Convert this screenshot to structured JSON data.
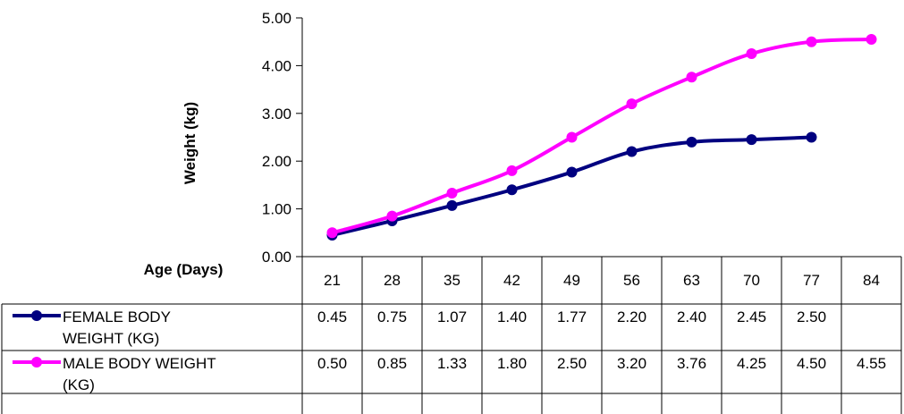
{
  "chart_data": {
    "type": "line",
    "title": "",
    "xlabel": "Age (Days)",
    "ylabel": "Weight (kg)",
    "ylim": [
      0,
      5
    ],
    "yticks": [
      "0.00",
      "1.00",
      "2.00",
      "3.00",
      "4.00",
      "5.00"
    ],
    "categories": [
      "21",
      "28",
      "35",
      "42",
      "49",
      "56",
      "63",
      "70",
      "77",
      "84"
    ],
    "grid": false,
    "legend": "data-table",
    "series": [
      {
        "name_lines": [
          "FEMALE BODY",
          "WEIGHT (KG)"
        ],
        "color": "#000080",
        "values": [
          0.45,
          0.75,
          1.07,
          1.4,
          1.77,
          2.2,
          2.4,
          2.45,
          2.5,
          null
        ],
        "labels": [
          "0.45",
          "0.75",
          "1.07",
          "1.40",
          "1.77",
          "2.20",
          "2.40",
          "2.45",
          "2.50",
          ""
        ]
      },
      {
        "name_lines": [
          "MALE BODY WEIGHT",
          "(KG)"
        ],
        "color": "#FF00FF",
        "values": [
          0.5,
          0.85,
          1.33,
          1.8,
          2.5,
          3.2,
          3.76,
          4.25,
          4.5,
          4.55
        ],
        "labels": [
          "0.50",
          "0.85",
          "1.33",
          "1.80",
          "2.50",
          "3.20",
          "3.76",
          "4.25",
          "4.50",
          "4.55"
        ]
      }
    ]
  }
}
